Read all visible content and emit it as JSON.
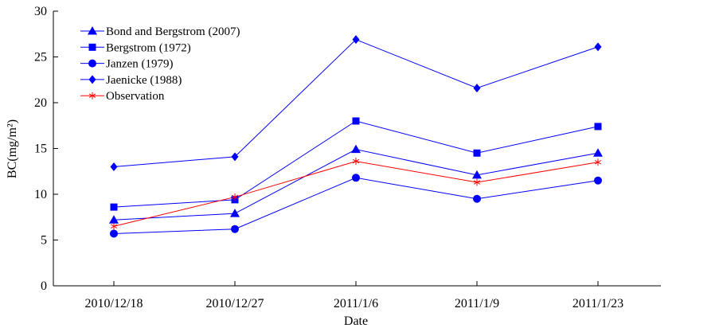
{
  "chart_data": {
    "type": "line",
    "title": "",
    "xlabel": "Date",
    "ylabel": "BC(mg/m²)",
    "categories": [
      "2010/12/18",
      "2010/12/27",
      "2011/1/6",
      "2011/1/9",
      "2011/1/23"
    ],
    "ylim": [
      0,
      30
    ],
    "yticks": [
      "0",
      "5",
      "10",
      "15",
      "20",
      "25",
      "30"
    ],
    "grid": false,
    "legend_position": "top-left",
    "series": [
      {
        "name": "Bond and Bergstrom (2007)",
        "marker": "triangle",
        "color": "#0000ff",
        "values": [
          7.2,
          7.9,
          14.9,
          12.1,
          14.5
        ]
      },
      {
        "name": "Bergstrom (1972)",
        "marker": "square",
        "color": "#0000ff",
        "values": [
          8.6,
          9.4,
          18.0,
          14.5,
          17.4
        ]
      },
      {
        "name": "Janzen (1979)",
        "marker": "circle",
        "color": "#0000ff",
        "values": [
          5.7,
          6.2,
          11.8,
          9.5,
          11.5
        ]
      },
      {
        "name": "Jaenicke (1988)",
        "marker": "diamond",
        "color": "#0000ff",
        "values": [
          13.0,
          14.1,
          26.9,
          21.6,
          26.1
        ]
      },
      {
        "name": "Observation",
        "marker": "asterisk",
        "color": "#ff0000",
        "values": [
          6.5,
          9.7,
          13.6,
          11.3,
          13.5
        ]
      }
    ]
  }
}
